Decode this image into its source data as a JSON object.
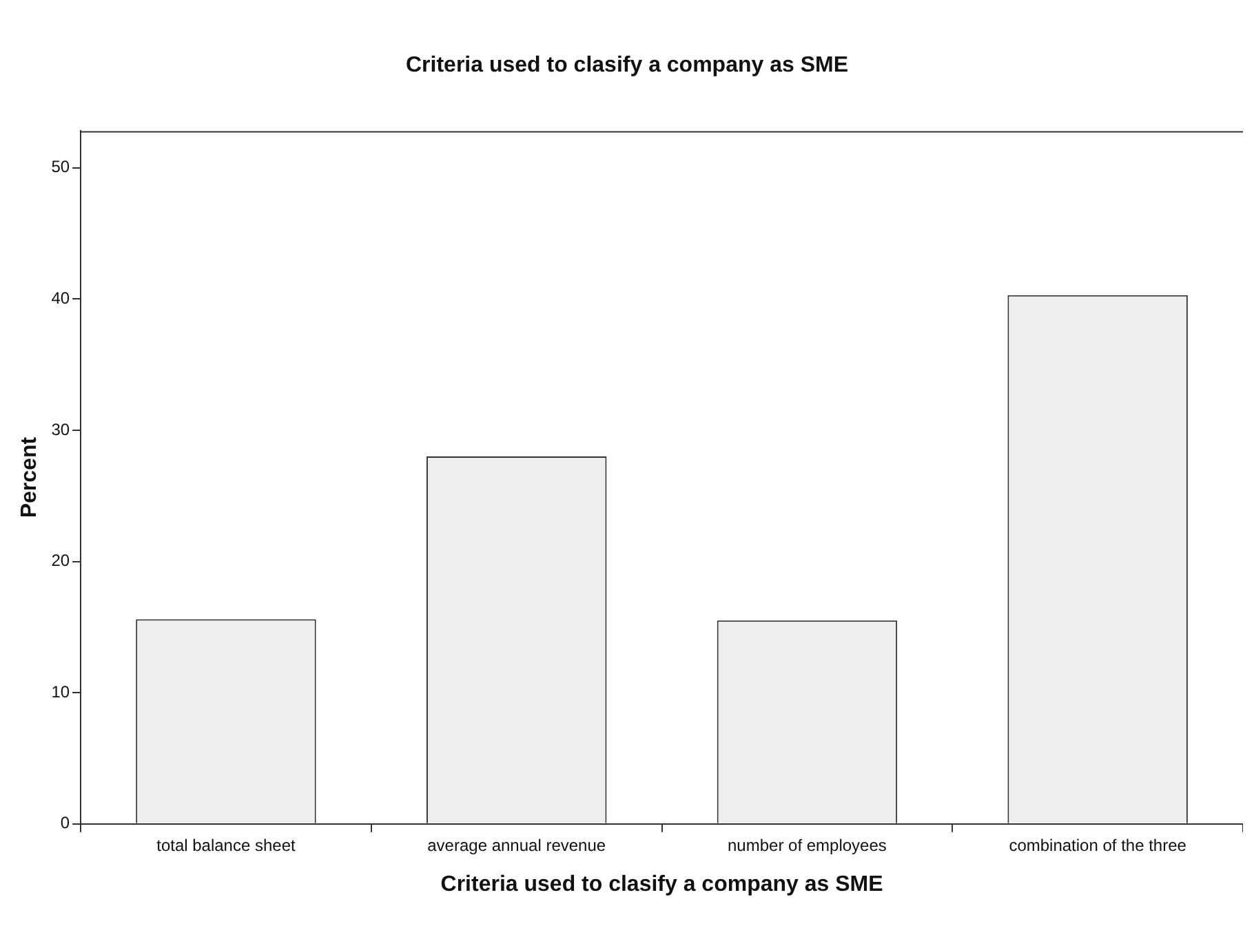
{
  "chart_data": {
    "type": "bar",
    "title": "Criteria used to clasify a company as SME",
    "xlabel": "Criteria used to clasify a company as SME",
    "ylabel": "Percent",
    "categories": [
      "total balance sheet",
      "average annual revenue",
      "number of employees",
      "combination of the three"
    ],
    "values": [
      15.6,
      28.0,
      15.5,
      40.3
    ],
    "color": "#eeeeee",
    "ylim": [
      0,
      52.8
    ],
    "yticks": [
      0,
      10,
      20,
      30,
      40,
      50
    ],
    "grid": false,
    "legend": false
  }
}
